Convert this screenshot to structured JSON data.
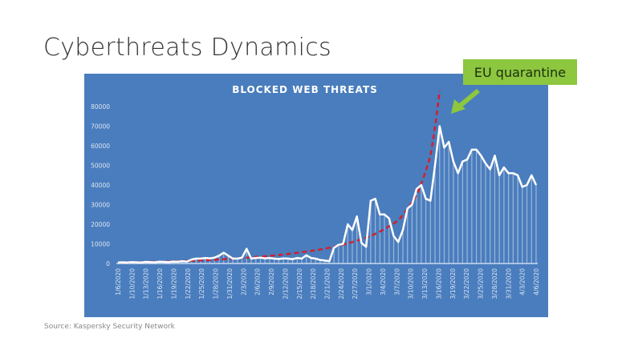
{
  "slide": {
    "title": "Cyberthreats Dynamics",
    "source": "Source: Kaspersky Security Network",
    "callout": "EU quarantine"
  },
  "colors": {
    "background": "#4a7dbd",
    "line": "#ffffff",
    "trend": "#d0202e",
    "callout": "#8dc63f"
  },
  "chart_data": {
    "type": "line",
    "title": "BLOCKED WEB THREATS",
    "xlabel": "",
    "ylabel": "",
    "ylim": [
      0,
      80000
    ],
    "yticks": [
      0,
      10000,
      20000,
      30000,
      40000,
      50000,
      60000,
      70000,
      80000
    ],
    "xtick_labels": [
      "1/6/2020",
      "1/10/2020",
      "1/13/2020",
      "1/16/2020",
      "1/19/2020",
      "1/22/2020",
      "1/25/2020",
      "1/28/2020",
      "1/31/2020",
      "2/3/2020",
      "2/6/2020",
      "2/9/2020",
      "2/12/2020",
      "2/15/2020",
      "2/18/2020",
      "2/21/2020",
      "2/24/2020",
      "2/27/2020",
      "3/1/2020",
      "3/4/2020",
      "3/7/2020",
      "3/10/2020",
      "3/13/2020",
      "3/16/2020",
      "3/19/2020",
      "3/22/2020",
      "3/25/2020",
      "3/28/2020",
      "3/31/2020",
      "4/3/2020",
      "4/6/2020"
    ],
    "x_start": "1/6/2020",
    "x_step_days": 1,
    "series": [
      {
        "name": "Blocked web threats",
        "values": [
          500,
          600,
          500,
          700,
          600,
          500,
          800,
          700,
          600,
          900,
          800,
          700,
          1000,
          900,
          1200,
          1000,
          2000,
          2500,
          2500,
          2800,
          2600,
          3000,
          4000,
          5500,
          4000,
          2500,
          2500,
          3000,
          7500,
          2500,
          2800,
          3000,
          2600,
          2800,
          2500,
          2300,
          2600,
          2500,
          2200,
          2800,
          2500,
          4200,
          2800,
          2500,
          1800,
          1500,
          1200,
          8000,
          9500,
          10000,
          20000,
          17000,
          24000,
          10500,
          8500,
          32000,
          33000,
          25000,
          25000,
          23000,
          14000,
          11000,
          17000,
          28000,
          30000,
          38000,
          40000,
          33000,
          32000,
          50000,
          70000,
          59000,
          62000,
          52000,
          46000,
          52000,
          53000,
          58000,
          58000,
          55000,
          51000,
          48000,
          55000,
          45000,
          49000,
          46000,
          46000,
          45000,
          39000,
          40000,
          45000,
          40000
        ]
      }
    ],
    "trendline": {
      "name": "Exponential trend",
      "style": "dashed",
      "points_day_value": [
        [
          0,
          500
        ],
        [
          25,
          2500
        ],
        [
          46,
          8000
        ],
        [
          55,
          14000
        ],
        [
          61,
          22000
        ],
        [
          65,
          35000
        ],
        [
          68,
          55000
        ],
        [
          70,
          88000
        ]
      ]
    },
    "grid": false,
    "legend": "none"
  }
}
